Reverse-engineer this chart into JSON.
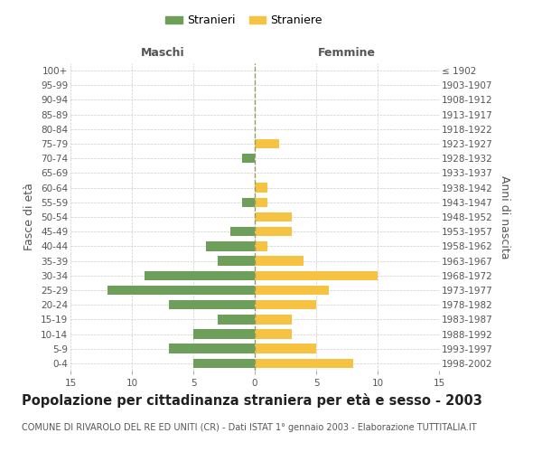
{
  "age_groups": [
    "0-4",
    "5-9",
    "10-14",
    "15-19",
    "20-24",
    "25-29",
    "30-34",
    "35-39",
    "40-44",
    "45-49",
    "50-54",
    "55-59",
    "60-64",
    "65-69",
    "70-74",
    "75-79",
    "80-84",
    "85-89",
    "90-94",
    "95-99",
    "100+"
  ],
  "birth_years": [
    "1998-2002",
    "1993-1997",
    "1988-1992",
    "1983-1987",
    "1978-1982",
    "1973-1977",
    "1968-1972",
    "1963-1967",
    "1958-1962",
    "1953-1957",
    "1948-1952",
    "1943-1947",
    "1938-1942",
    "1933-1937",
    "1928-1932",
    "1923-1927",
    "1918-1922",
    "1913-1917",
    "1908-1912",
    "1903-1907",
    "≤ 1902"
  ],
  "males": [
    5,
    7,
    5,
    3,
    7,
    12,
    9,
    3,
    4,
    2,
    0,
    1,
    0,
    0,
    1,
    0,
    0,
    0,
    0,
    0,
    0
  ],
  "females": [
    8,
    5,
    3,
    3,
    5,
    6,
    10,
    4,
    1,
    3,
    3,
    1,
    1,
    0,
    0,
    2,
    0,
    0,
    0,
    0,
    0
  ],
  "male_color": "#6d9e5a",
  "female_color": "#f5c242",
  "background_color": "#ffffff",
  "grid_color": "#cccccc",
  "center_line_color": "#999966",
  "title": "Popolazione per cittadinanza straniera per età e sesso - 2003",
  "subtitle": "COMUNE DI RIVAROLO DEL RE ED UNITI (CR) - Dati ISTAT 1° gennaio 2003 - Elaborazione TUTTITALIA.IT",
  "ylabel_left": "Fasce di età",
  "ylabel_right": "Anni di nascita",
  "xlabel_male": "Maschi",
  "xlabel_female": "Femmine",
  "legend_male": "Stranieri",
  "legend_female": "Straniere",
  "xlim": 15,
  "title_fontsize": 10.5,
  "subtitle_fontsize": 7,
  "axis_label_fontsize": 9,
  "tick_fontsize": 7.5,
  "legend_fontsize": 9
}
